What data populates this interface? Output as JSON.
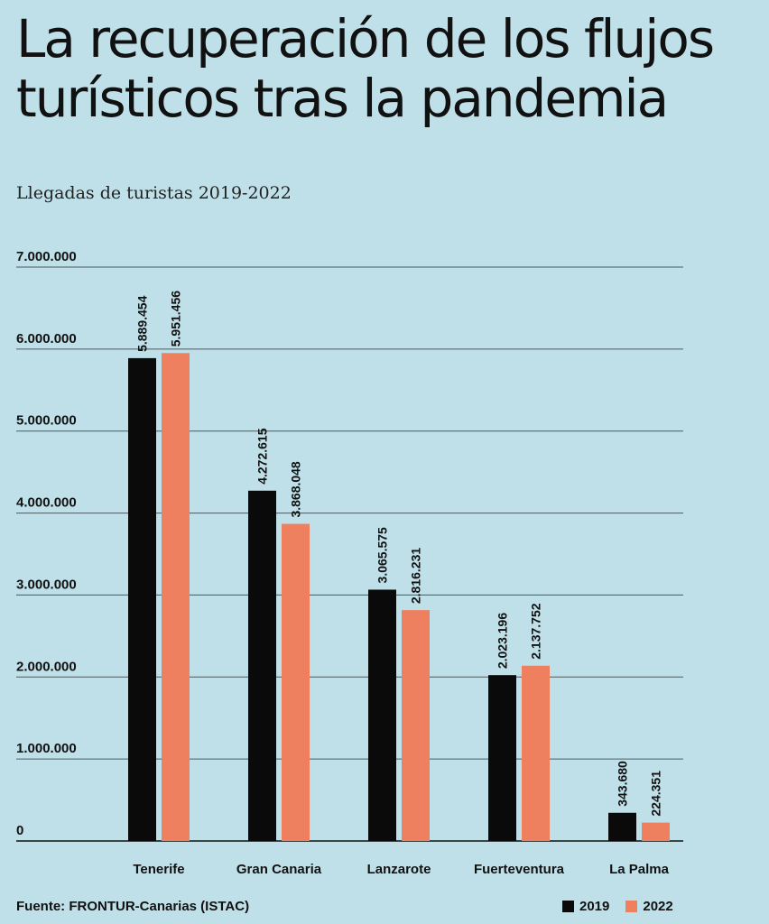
{
  "title": "La recuperación de los flujos turísticos tras la pandemia",
  "source": "Fuente: FRONTUR-Canarias (ISTAC)",
  "colors": {
    "background": "#bfe0e8",
    "series_2019": "#0a0a0a",
    "series_2022": "#ee8060",
    "gridline": "#4a5a5e"
  },
  "chart_data": {
    "type": "bar",
    "title": "Llegadas de turistas 2019-2022",
    "xlabel": "",
    "ylabel": "",
    "ylim": [
      0,
      7000000
    ],
    "yticks": [
      0,
      1000000,
      2000000,
      3000000,
      4000000,
      5000000,
      6000000,
      7000000
    ],
    "ytick_labels": [
      "0",
      "1.000.000",
      "2.000.000",
      "3.000.000",
      "4.000.000",
      "5.000.000",
      "6.000.000",
      "7.000.000"
    ],
    "grid": true,
    "legend_position": "bottom-right",
    "categories": [
      "Tenerife",
      "Gran Canaria",
      "Lanzarote",
      "Fuerteventura",
      "La Palma"
    ],
    "series": [
      {
        "name": "2019",
        "values": [
          5889454,
          4272615,
          3065575,
          2023196,
          343680
        ],
        "labels": [
          "5.889.454",
          "4.272.615",
          "3.065.575",
          "2.023.196",
          "343.680"
        ]
      },
      {
        "name": "2022",
        "values": [
          5951456,
          3868048,
          2816231,
          2137752,
          224351
        ],
        "labels": [
          "5.951.456",
          "3.868.048",
          "2.816.231",
          "2.137.752",
          "224.351"
        ]
      }
    ]
  }
}
